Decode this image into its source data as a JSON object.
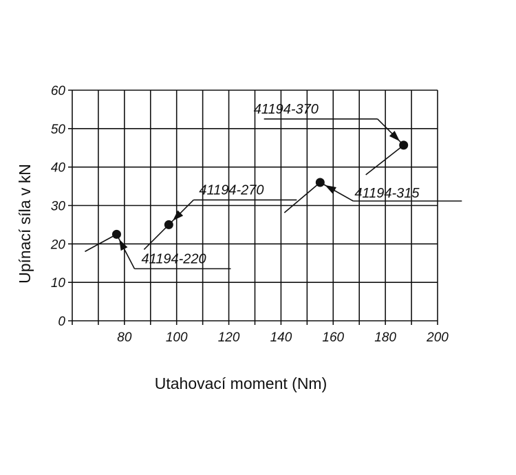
{
  "chart_data": {
    "type": "scatter",
    "xlabel": "Utahovací moment (Nm)",
    "ylabel": "Upínací síla v kN",
    "xlim": [
      60,
      200
    ],
    "ylim": [
      0,
      60
    ],
    "x_ticks": [
      80,
      100,
      120,
      140,
      160,
      180,
      200
    ],
    "y_ticks": [
      0,
      10,
      20,
      30,
      40,
      50,
      60
    ],
    "x_grid_step": 10,
    "y_grid_step": 10,
    "grid": true,
    "points": [
      {
        "label": "41194-220",
        "x": 77,
        "y": 22.5
      },
      {
        "label": "41194-270",
        "x": 97,
        "y": 25
      },
      {
        "label": "41194-315",
        "x": 155,
        "y": 36
      },
      {
        "label": "41194-370",
        "x": 187,
        "y": 45.7
      }
    ]
  }
}
